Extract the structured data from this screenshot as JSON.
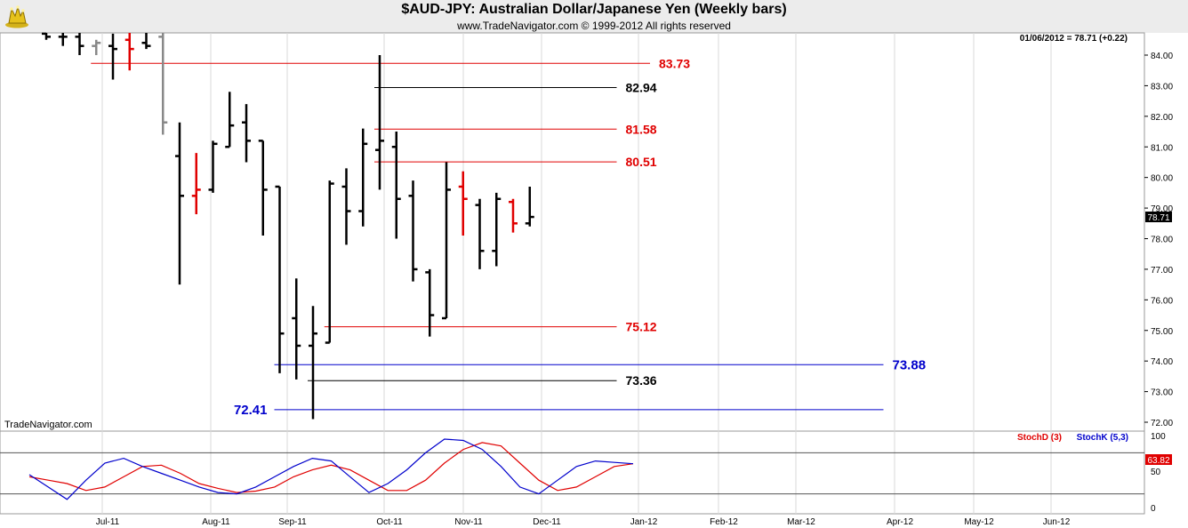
{
  "header": {
    "title": "$AUD-JPY:  Australian Dollar/Japanese Yen  (Weekly bars)",
    "copyright": "www.TradeNavigator.com © 1999-2012 All rights reserved"
  },
  "price_panel": {
    "last_value_label": "01/06/2012 = 78.71 (+0.22)",
    "last_value_tag": "78.71",
    "watermark": "TradeNavigator.com"
  },
  "stoch_panel": {
    "legend_d": "StochD (3)",
    "legend_k": "StochK (5,3)",
    "last_value_tag": "63.82",
    "ticks": [
      "100",
      "50",
      "0"
    ]
  },
  "colors": {
    "up_bar": "#000000",
    "down_bar": "#e00000",
    "neutral_bar": "#888888",
    "red_level": "#e00000",
    "black_level": "#000000",
    "blue_level": "#0000cc",
    "stoch_d": "#e00000",
    "stoch_k": "#0000cc"
  },
  "chart_data": {
    "type": "ohlc",
    "title": "$AUD-JPY:  Australian Dollar/Japanese Yen  (Weekly bars)",
    "ylim": [
      72,
      84.5
    ],
    "y_ticks": [
      "84.00",
      "83.00",
      "82.00",
      "81.00",
      "80.00",
      "79.00",
      "78.00",
      "77.00",
      "76.00",
      "75.00",
      "74.00",
      "73.00",
      "72.00"
    ],
    "x_ticks": [
      "Jul-11",
      "Aug-11",
      "Sep-11",
      "Oct-11",
      "Nov-11",
      "Dec-11",
      "Jan-12",
      "Feb-12",
      "Mar-12",
      "Apr-12",
      "May-12",
      "Jun-12"
    ],
    "bars": [
      {
        "week": 0,
        "open": 84.7,
        "high": 84.9,
        "low": 84.5,
        "close": 84.6,
        "color": "black"
      },
      {
        "week": 1,
        "open": 84.6,
        "high": 84.8,
        "low": 84.3,
        "close": 84.6,
        "color": "black"
      },
      {
        "week": 2,
        "open": 84.6,
        "high": 84.8,
        "low": 84.0,
        "close": 84.3,
        "color": "black"
      },
      {
        "week": 3,
        "open": 84.3,
        "high": 84.5,
        "low": 84.0,
        "close": 84.4,
        "color": "gray"
      },
      {
        "week": 4,
        "open": 84.3,
        "high": 84.7,
        "low": 83.2,
        "close": 84.2,
        "color": "black"
      },
      {
        "week": 5,
        "open": 84.5,
        "high": 84.8,
        "low": 83.5,
        "close": 84.2,
        "color": "red"
      },
      {
        "week": 6,
        "open": 84.4,
        "high": 85.0,
        "low": 84.2,
        "close": 84.3,
        "color": "black"
      },
      {
        "week": 7,
        "open": 84.6,
        "high": 84.8,
        "low": 81.4,
        "close": 81.8,
        "color": "gray"
      },
      {
        "week": 8,
        "open": 80.7,
        "high": 81.8,
        "low": 76.5,
        "close": 79.4,
        "color": "black"
      },
      {
        "week": 9,
        "open": 79.4,
        "high": 80.8,
        "low": 78.8,
        "close": 79.6,
        "color": "red"
      },
      {
        "week": 10,
        "open": 79.6,
        "high": 81.2,
        "low": 79.5,
        "close": 81.1,
        "color": "black"
      },
      {
        "week": 11,
        "open": 81.0,
        "high": 82.8,
        "low": 81.0,
        "close": 81.7,
        "color": "black"
      },
      {
        "week": 12,
        "open": 81.8,
        "high": 82.4,
        "low": 80.5,
        "close": 81.2,
        "color": "black"
      },
      {
        "week": 13,
        "open": 81.2,
        "high": 81.2,
        "low": 78.1,
        "close": 79.6,
        "color": "black"
      },
      {
        "week": 14,
        "open": 79.7,
        "high": 79.7,
        "low": 73.6,
        "close": 74.9,
        "color": "black"
      },
      {
        "week": 15,
        "open": 75.4,
        "high": 76.7,
        "low": 73.4,
        "close": 74.5,
        "color": "black"
      },
      {
        "week": 16,
        "open": 74.5,
        "high": 75.8,
        "low": 72.1,
        "close": 74.9,
        "color": "black"
      },
      {
        "week": 17,
        "open": 74.6,
        "high": 79.9,
        "low": 74.6,
        "close": 79.8,
        "color": "black"
      },
      {
        "week": 18,
        "open": 79.7,
        "high": 80.3,
        "low": 77.8,
        "close": 78.9,
        "color": "black"
      },
      {
        "week": 19,
        "open": 78.9,
        "high": 81.6,
        "low": 78.4,
        "close": 81.1,
        "color": "black"
      },
      {
        "week": 20,
        "open": 80.9,
        "high": 84.0,
        "low": 79.6,
        "close": 81.2,
        "color": "black"
      },
      {
        "week": 21,
        "open": 81.0,
        "high": 81.5,
        "low": 78.0,
        "close": 79.3,
        "color": "black"
      },
      {
        "week": 22,
        "open": 79.4,
        "high": 79.9,
        "low": 76.6,
        "close": 77.0,
        "color": "black"
      },
      {
        "week": 23,
        "open": 76.9,
        "high": 77.0,
        "low": 74.8,
        "close": 75.5,
        "color": "black"
      },
      {
        "week": 24,
        "open": 75.4,
        "high": 80.5,
        "low": 75.4,
        "close": 79.6,
        "color": "black"
      },
      {
        "week": 25,
        "open": 79.7,
        "high": 80.2,
        "low": 78.1,
        "close": 79.3,
        "color": "red"
      },
      {
        "week": 26,
        "open": 79.1,
        "high": 79.3,
        "low": 77.0,
        "close": 77.6,
        "color": "black"
      },
      {
        "week": 27,
        "open": 77.6,
        "high": 79.5,
        "low": 77.1,
        "close": 79.3,
        "color": "black"
      },
      {
        "week": 28,
        "open": 79.2,
        "high": 79.3,
        "low": 78.2,
        "close": 78.5,
        "color": "red"
      },
      {
        "week": 29,
        "open": 78.5,
        "high": 79.7,
        "low": 78.4,
        "close": 78.71,
        "color": "black"
      }
    ],
    "levels": [
      {
        "value": 83.73,
        "label": "83.73",
        "color": "red",
        "start_week": 3,
        "end_week": 36
      },
      {
        "value": 82.94,
        "label": "82.94",
        "color": "black",
        "start_week": 20,
        "end_week": 34
      },
      {
        "value": 81.58,
        "label": "81.58",
        "color": "red",
        "start_week": 20,
        "end_week": 34
      },
      {
        "value": 80.51,
        "label": "80.51",
        "color": "red",
        "start_week": 20,
        "end_week": 34
      },
      {
        "value": 75.12,
        "label": "75.12",
        "color": "red",
        "start_week": 17,
        "end_week": 34
      },
      {
        "value": 73.88,
        "label": "73.88",
        "color": "blue",
        "start_week": 14,
        "end_week": 50
      },
      {
        "value": 73.36,
        "label": "73.36",
        "color": "black",
        "start_week": 16,
        "end_week": 34
      },
      {
        "value": 72.41,
        "label": "72.41",
        "color": "blue",
        "start_week": 14,
        "end_week": 50
      }
    ],
    "stochastics": {
      "ylim": [
        0,
        100
      ],
      "reference_lines": [
        80,
        20
      ],
      "stoch_d_name": "StochD (3)",
      "stoch_k_name": "StochK (5,3)",
      "stoch_d": [
        45,
        40,
        35,
        25,
        30,
        45,
        60,
        62,
        50,
        35,
        28,
        22,
        24,
        30,
        45,
        55,
        62,
        55,
        40,
        25,
        25,
        40,
        65,
        85,
        95,
        90,
        65,
        40,
        25,
        30,
        45,
        60,
        64
      ],
      "stoch_k": [
        48,
        30,
        12,
        40,
        65,
        72,
        60,
        50,
        40,
        30,
        22,
        20,
        30,
        45,
        60,
        72,
        68,
        45,
        22,
        35,
        55,
        80,
        100,
        98,
        85,
        60,
        30,
        20,
        40,
        60,
        68,
        66,
        64
      ],
      "last_value": 63.82
    }
  }
}
